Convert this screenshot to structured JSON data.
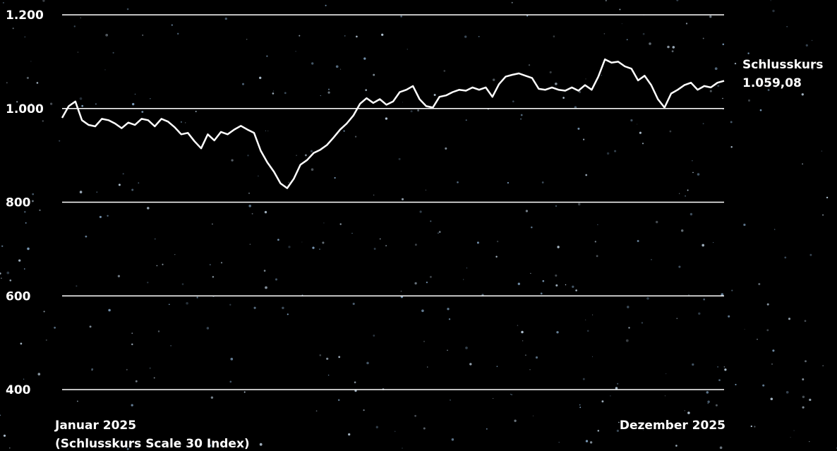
{
  "chart_data": {
    "type": "line",
    "title": "",
    "ylim": [
      400,
      1200
    ],
    "y_ticks": [
      "1.200",
      "1.000",
      "800",
      "600",
      "400"
    ],
    "y_tick_values": [
      1200,
      1000,
      800,
      600,
      400
    ],
    "x_start_label": "Januar 2025",
    "x_start_sublabel": "(Schlusskurs Scale 30 Index)",
    "x_end_label": "Dezember 2025",
    "end_label": "Schlusskurs",
    "end_value_label": "1.059,08",
    "grid": true,
    "colors": {
      "background": "#000000",
      "line": "#ffffff",
      "grid": "#ffffff"
    },
    "series": [
      {
        "values": [
          980,
          1005,
          1015,
          975,
          965,
          962,
          978,
          975,
          968,
          958,
          970,
          965,
          978,
          975,
          962,
          978,
          972,
          960,
          945,
          948,
          930,
          915,
          945,
          932,
          950,
          945,
          955,
          963,
          955,
          948,
          910,
          885,
          865,
          840,
          830,
          850,
          880,
          890,
          905,
          912,
          922,
          938,
          955,
          968,
          985,
          1010,
          1022,
          1012,
          1020,
          1008,
          1015,
          1035,
          1040,
          1048,
          1020,
          1005,
          1002,
          1025,
          1028,
          1035,
          1040,
          1038,
          1045,
          1040,
          1045,
          1025,
          1052,
          1068,
          1072,
          1075,
          1070,
          1065,
          1042,
          1040,
          1045,
          1040,
          1038,
          1045,
          1038,
          1050,
          1040,
          1068,
          1105,
          1098,
          1100,
          1090,
          1085,
          1060,
          1070,
          1050,
          1020,
          1002,
          1032,
          1040,
          1050,
          1055,
          1040,
          1048,
          1045,
          1055,
          1059
        ]
      }
    ]
  }
}
